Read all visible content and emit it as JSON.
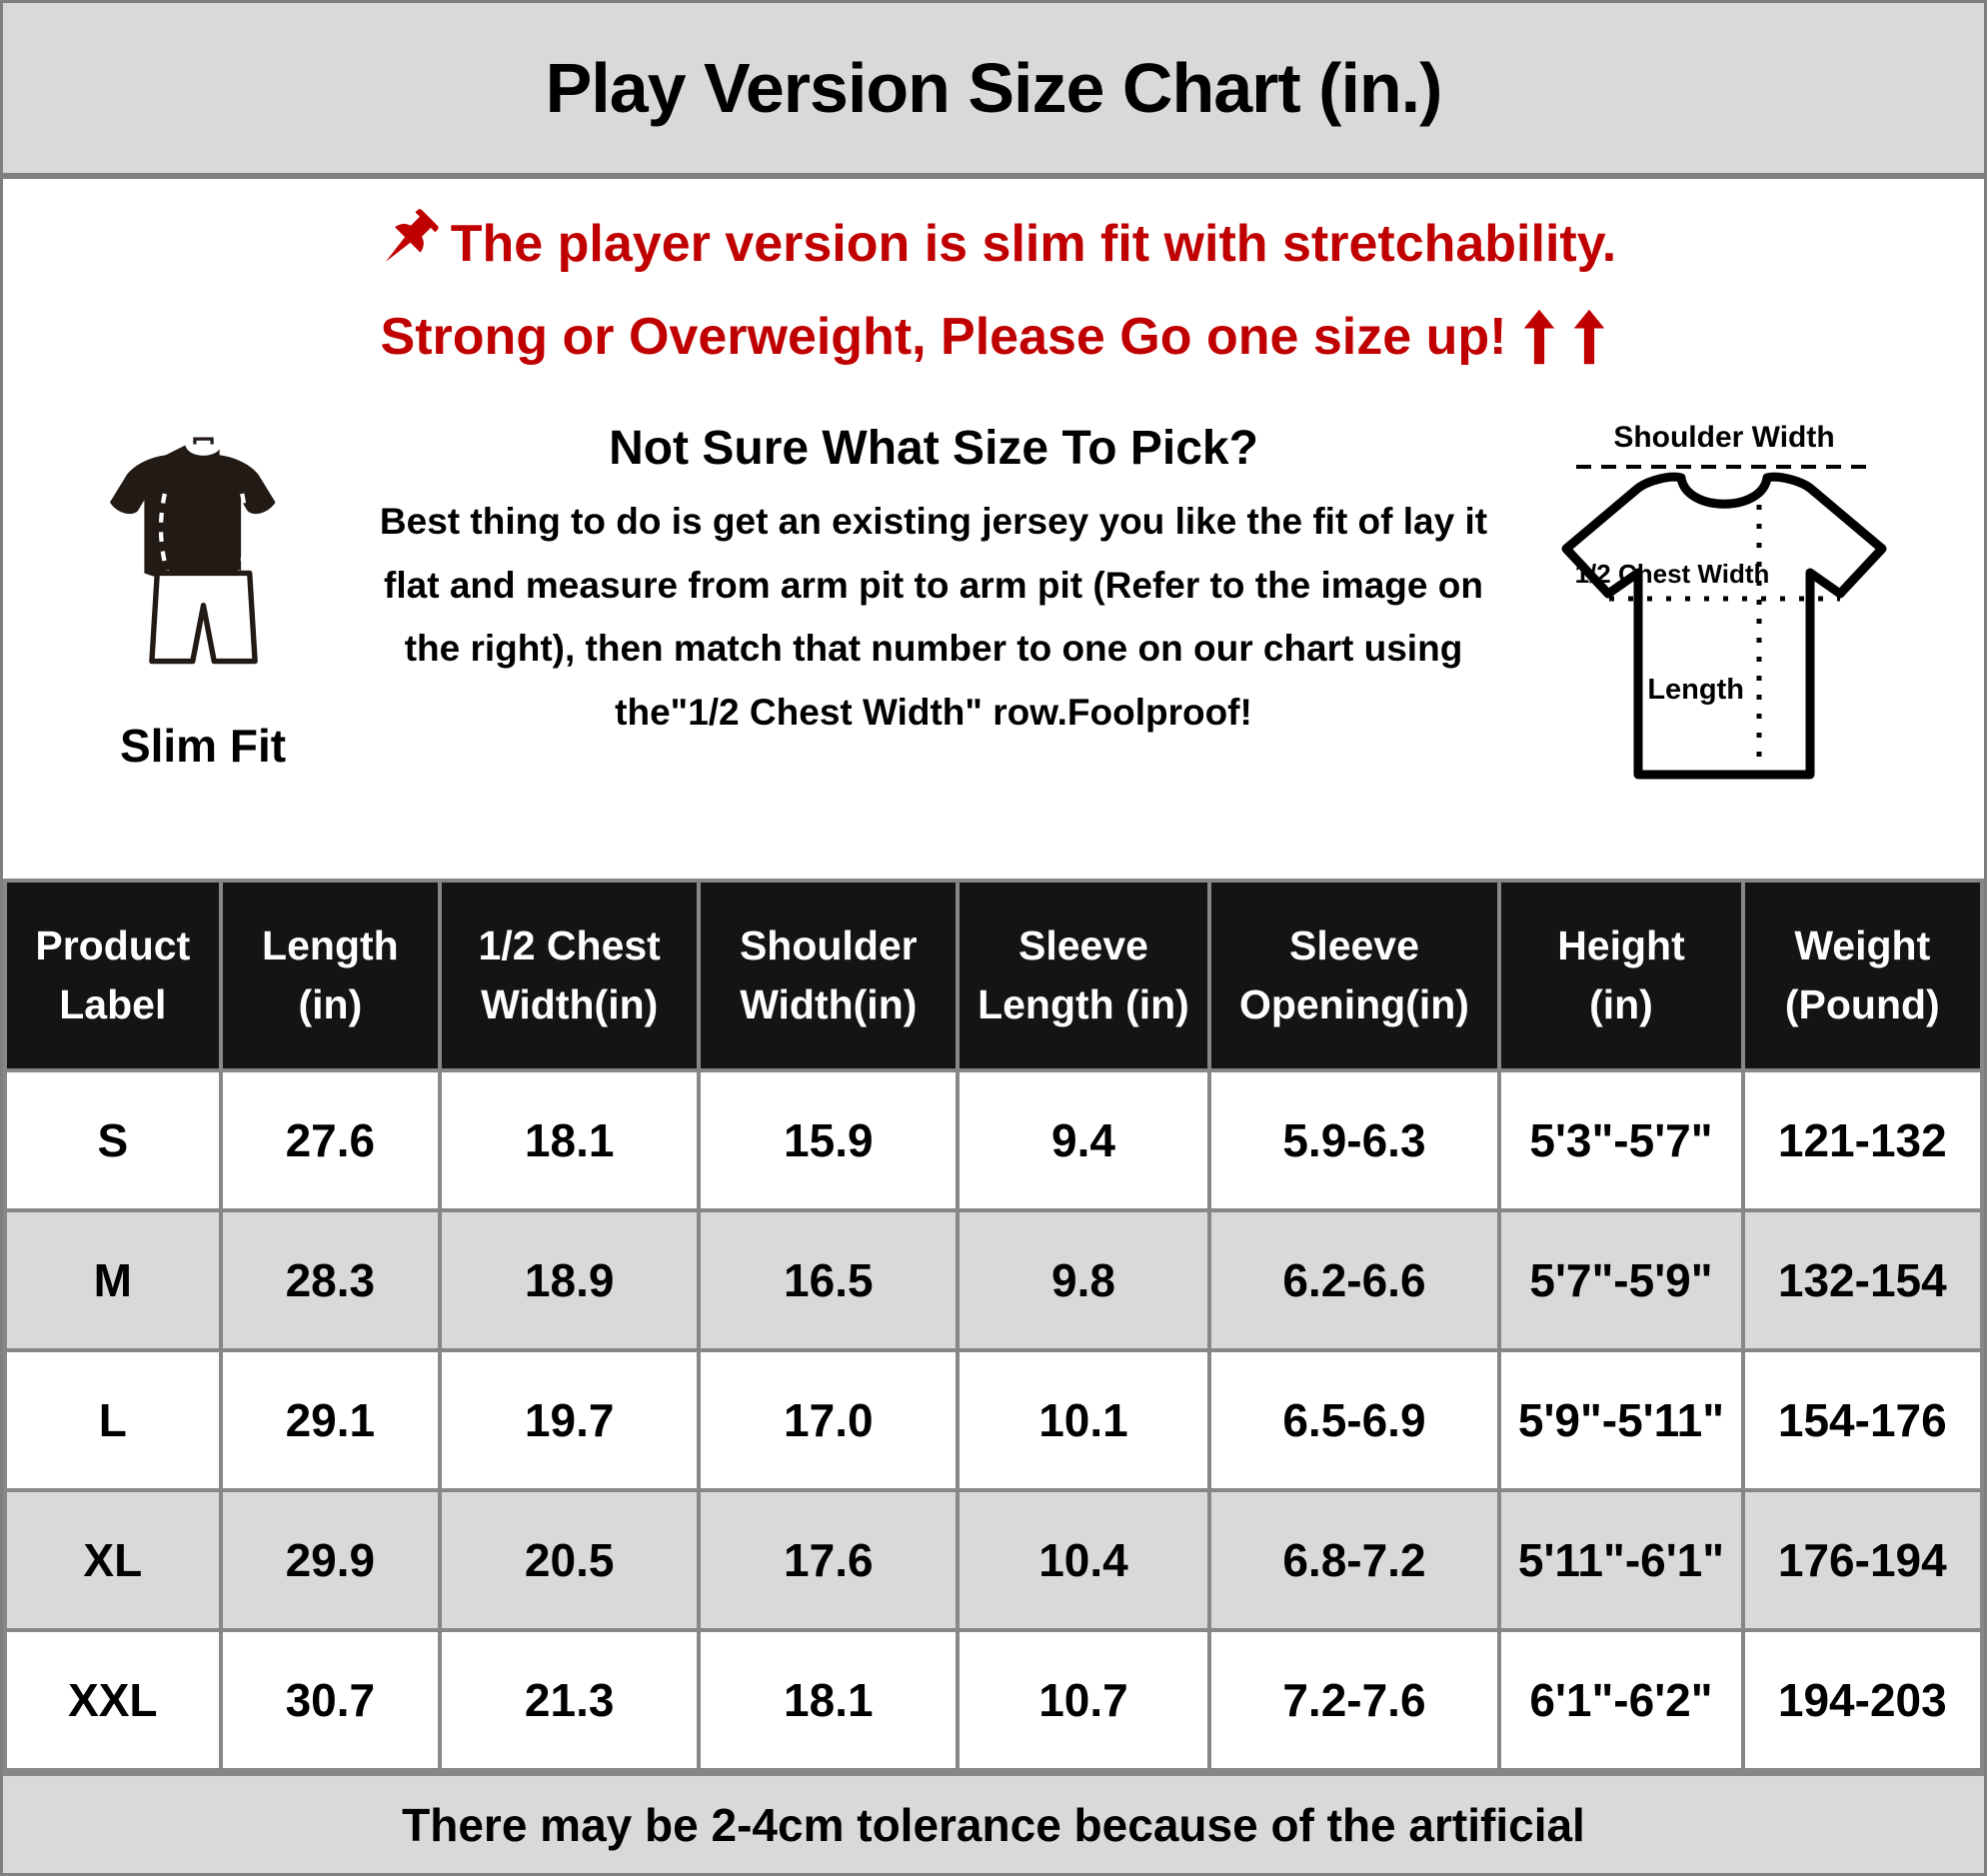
{
  "page": {
    "title": "Play Version Size Chart (in.)",
    "colors": {
      "accent_red": "#C00000",
      "table_header_bg": "#141414",
      "row_alt_bg": "#D9D9D9",
      "band_bg": "#D9D9D9",
      "grid_gray": "#878787"
    }
  },
  "notice": {
    "line1": "The player version is slim fit with stretchability.",
    "line2": "Strong or Overweight, Please Go one size up!",
    "pin_icon": "pushpin-icon",
    "arrow_icon": "arrow-up-icon"
  },
  "fit": {
    "label": "Slim Fit"
  },
  "size_help": {
    "heading": "Not Sure What Size To Pick?",
    "body": "Best thing to do is get an existing jersey you like the fit of lay it flat and measure from arm pit to arm pit (Refer to the image on the right), then match that number to one on our chart using the\"1/2 Chest Width\" row.Foolproof!"
  },
  "diagram": {
    "shoulder_label": "Shoulder Width",
    "chest_label": "1/2 Chest Width",
    "length_label": "Length"
  },
  "chart_data": {
    "type": "table",
    "columns": [
      "Product Label",
      "Length (in)",
      "1/2 Chest Width(in)",
      "Shoulder Width(in)",
      "Sleeve Length (in)",
      "Sleeve Opening(in)",
      "Height (in)",
      "Weight (Pound)"
    ],
    "header_lines": [
      [
        "Product",
        "Label"
      ],
      [
        "Length",
        "(in)"
      ],
      [
        "1/2 Chest",
        "Width(in)"
      ],
      [
        "Shoulder",
        "Width(in)"
      ],
      [
        "Sleeve",
        "Length (in)"
      ],
      [
        "Sleeve",
        "Opening(in)"
      ],
      [
        "Height",
        "(in)"
      ],
      [
        "Weight",
        "(Pound)"
      ]
    ],
    "rows": [
      [
        "S",
        "27.6",
        "18.1",
        "15.9",
        "9.4",
        "5.9-6.3",
        "5'3\"-5'7\"",
        "121-132"
      ],
      [
        "M",
        "28.3",
        "18.9",
        "16.5",
        "9.8",
        "6.2-6.6",
        "5'7\"-5'9\"",
        "132-154"
      ],
      [
        "L",
        "29.1",
        "19.7",
        "17.0",
        "10.1",
        "6.5-6.9",
        "5'9\"-5'11\"",
        "154-176"
      ],
      [
        "XL",
        "29.9",
        "20.5",
        "17.6",
        "10.4",
        "6.8-7.2",
        "5'11\"-6'1\"",
        "176-194"
      ],
      [
        "XXL",
        "30.7",
        "21.3",
        "18.1",
        "10.7",
        "7.2-7.6",
        "6'1\"-6'2\"",
        "194-203"
      ]
    ]
  },
  "footer": {
    "note": "There may be 2-4cm tolerance because of the artificial"
  }
}
